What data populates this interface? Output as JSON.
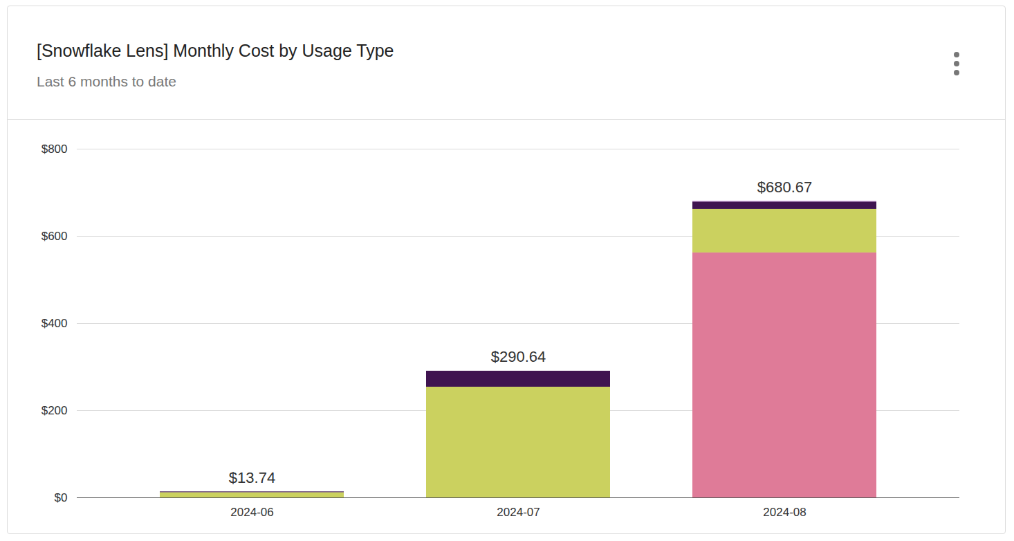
{
  "chart_data": {
    "type": "bar",
    "title": "[Snowflake Lens] Monthly Cost by Usage Type",
    "subtitle": "Last 6 months to date",
    "categories": [
      "2024-06",
      "2024-07",
      "2024-08"
    ],
    "stacked": true,
    "series": [
      {
        "color": "#df7b98",
        "values": [
          0,
          0,
          562.0
        ]
      },
      {
        "color": "#cbd15f",
        "values": [
          12.0,
          254.0,
          100.0
        ]
      },
      {
        "color": "#3f1450",
        "values": [
          1.74,
          36.64,
          17.0
        ]
      },
      {
        "color": "#e3b6ee",
        "values": [
          0,
          0,
          1.67
        ]
      }
    ],
    "totals": [
      13.74,
      290.64,
      680.67
    ],
    "total_labels": [
      "$13.74",
      "$290.64",
      "$680.67"
    ],
    "ylim": [
      0,
      800
    ],
    "yticks": [
      {
        "value": 0,
        "label": "$0"
      },
      {
        "value": 200,
        "label": "$200"
      },
      {
        "value": 400,
        "label": "$400"
      },
      {
        "value": 600,
        "label": "$600"
      },
      {
        "value": 800,
        "label": "$800"
      }
    ],
    "grid": true
  }
}
